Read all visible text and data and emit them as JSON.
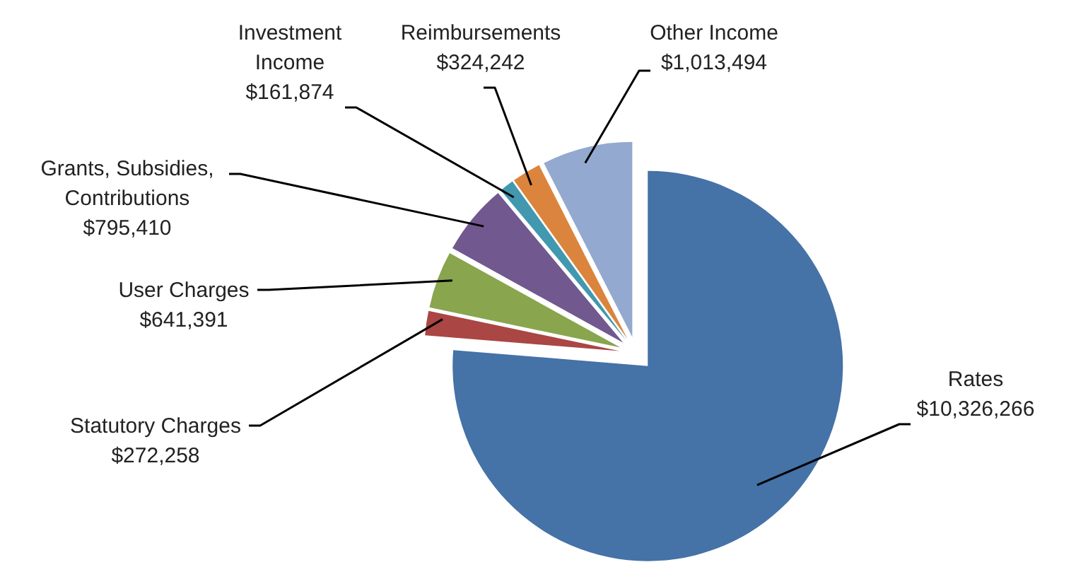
{
  "chart_data": {
    "type": "pie",
    "categories": [
      "Rates",
      "Statutory Charges",
      "User Charges",
      "Grants, Subsidies, Contributions",
      "Investment Income",
      "Reimbursements",
      "Other Income"
    ],
    "values": [
      10326266,
      272258,
      641391,
      795410,
      161874,
      324242,
      1013494
    ],
    "colors": [
      "#4572a7",
      "#aa4643",
      "#89a54e",
      "#71588f",
      "#4198af",
      "#db843d",
      "#93a9cf"
    ],
    "value_labels": [
      "$10,326,266",
      "$272,258",
      "$641,391",
      "$795,410",
      "$161,874",
      "$324,242",
      "$1,013,494"
    ]
  }
}
